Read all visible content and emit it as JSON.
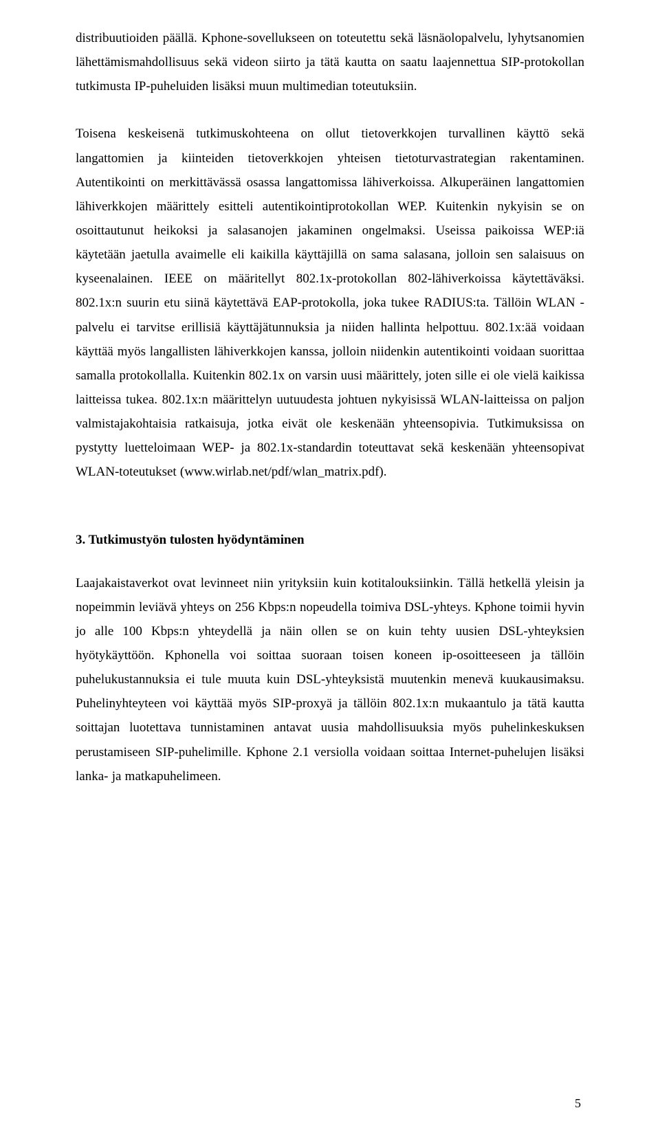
{
  "para1": "distribuutioiden päällä. Kphone-sovellukseen on toteutettu sekä läsnäolopalvelu, lyhytsanomien lähettämismahdollisuus sekä videon siirto ja tätä kautta on saatu laajennettua SIP-protokollan tutkimusta IP-puheluiden lisäksi muun multimedian toteutuksiin.",
  "para2": "Toisena keskeisenä tutkimuskohteena on ollut tietoverkkojen turvallinen käyttö sekä langattomien ja kiinteiden tietoverkkojen yhteisen tietoturvastrategian rakentaminen. Autentikointi on merkittävässä osassa langattomissa lähiverkoissa. Alkuperäinen langattomien lähiverkkojen määrittely esitteli autentikointiprotokollan WEP. Kuitenkin nykyisin se on osoittautunut heikoksi ja salasanojen jakaminen ongelmaksi. Useissa paikoissa WEP:iä käytetään jaetulla avaimelle eli kaikilla käyttäjillä on sama salasana, jolloin sen salaisuus on kyseenalainen. IEEE on määritellyt 802.1x-protokollan 802-lähiverkoissa käytettäväksi. 802.1x:n suurin etu siinä käytettävä EAP-protokolla, joka tukee RADIUS:ta. Tällöin WLAN -palvelu ei tarvitse erillisiä käyttäjätunnuksia ja niiden hallinta helpottuu. 802.1x:ää voidaan käyttää myös langallisten lähiverkkojen kanssa, jolloin niidenkin autentikointi voidaan suorittaa samalla protokollalla. Kuitenkin 802.1x on varsin uusi määrittely, joten sille ei ole vielä kaikissa laitteissa tukea. 802.1x:n määrittelyn uutuudesta johtuen nykyisissä WLAN-laitteissa on paljon valmistajakohtaisia ratkaisuja, jotka eivät ole keskenään yhteensopivia. Tutkimuksissa on pystytty luetteloimaan WEP- ja 802.1x-standardin toteuttavat sekä keskenään yhteensopivat WLAN-toteutukset (www.wirlab.net/pdf/wlan_matrix.pdf).",
  "heading": "3. Tutkimustyön tulosten hyödyntäminen",
  "para3": "Laajakaistaverkot ovat levinneet niin yrityksiin kuin kotitalouksiinkin. Tällä hetkellä yleisin ja nopeimmin leviävä yhteys on 256 Kbps:n nopeudella toimiva DSL-yhteys. Kphone toimii hyvin jo alle 100 Kbps:n yhteydellä ja näin ollen se on kuin tehty uusien DSL-yhteyksien hyötykäyttöön. Kphonella voi soittaa suoraan toisen koneen ip-osoitteeseen ja tällöin puhelukustannuksia ei tule muuta kuin DSL-yhteyksistä muutenkin menevä kuukausimaksu. Puhelinyhteyteen voi käyttää myös SIP-proxyä ja tällöin 802.1x:n mukaantulo ja tätä kautta soittajan luotettava tunnistaminen antavat uusia mahdollisuuksia myös puhelinkeskuksen perustamiseen SIP-puhelimille. Kphone 2.1 versiolla voidaan soittaa Internet-puhelujen lisäksi lanka- ja matkapuhelimeen.",
  "pageNumber": "5"
}
